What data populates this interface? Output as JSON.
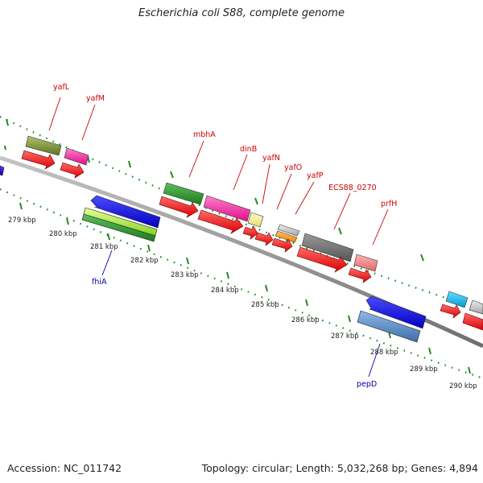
{
  "title": "Escherichia coli S88, complete genome",
  "footer": {
    "accession": "Accession: NC_011742",
    "summary": "Topology: circular; Length: 5,032,268 bp; Genes: 4,894"
  },
  "scale_labels": [
    "279 kbp",
    "280 kbp",
    "281 kbp",
    "282 kbp",
    "283 kbp",
    "284 kbp",
    "285 kbp",
    "286 kbp",
    "287 kbp",
    "288 kbp",
    "289 kbp",
    "290 kbp"
  ],
  "gene_labels": [
    "yafL",
    "yafM",
    "mbhA",
    "dinB",
    "yafN",
    "yafO",
    "yafP",
    "ECS88_0270",
    "prfH",
    "fhiA",
    "pepD"
  ],
  "colors": {
    "backbone": "#8a8a8a",
    "tick": "#228b22",
    "cds": "#ff0000",
    "label_forward": "#cc0000",
    "label_reverse": "#0000aa"
  }
}
